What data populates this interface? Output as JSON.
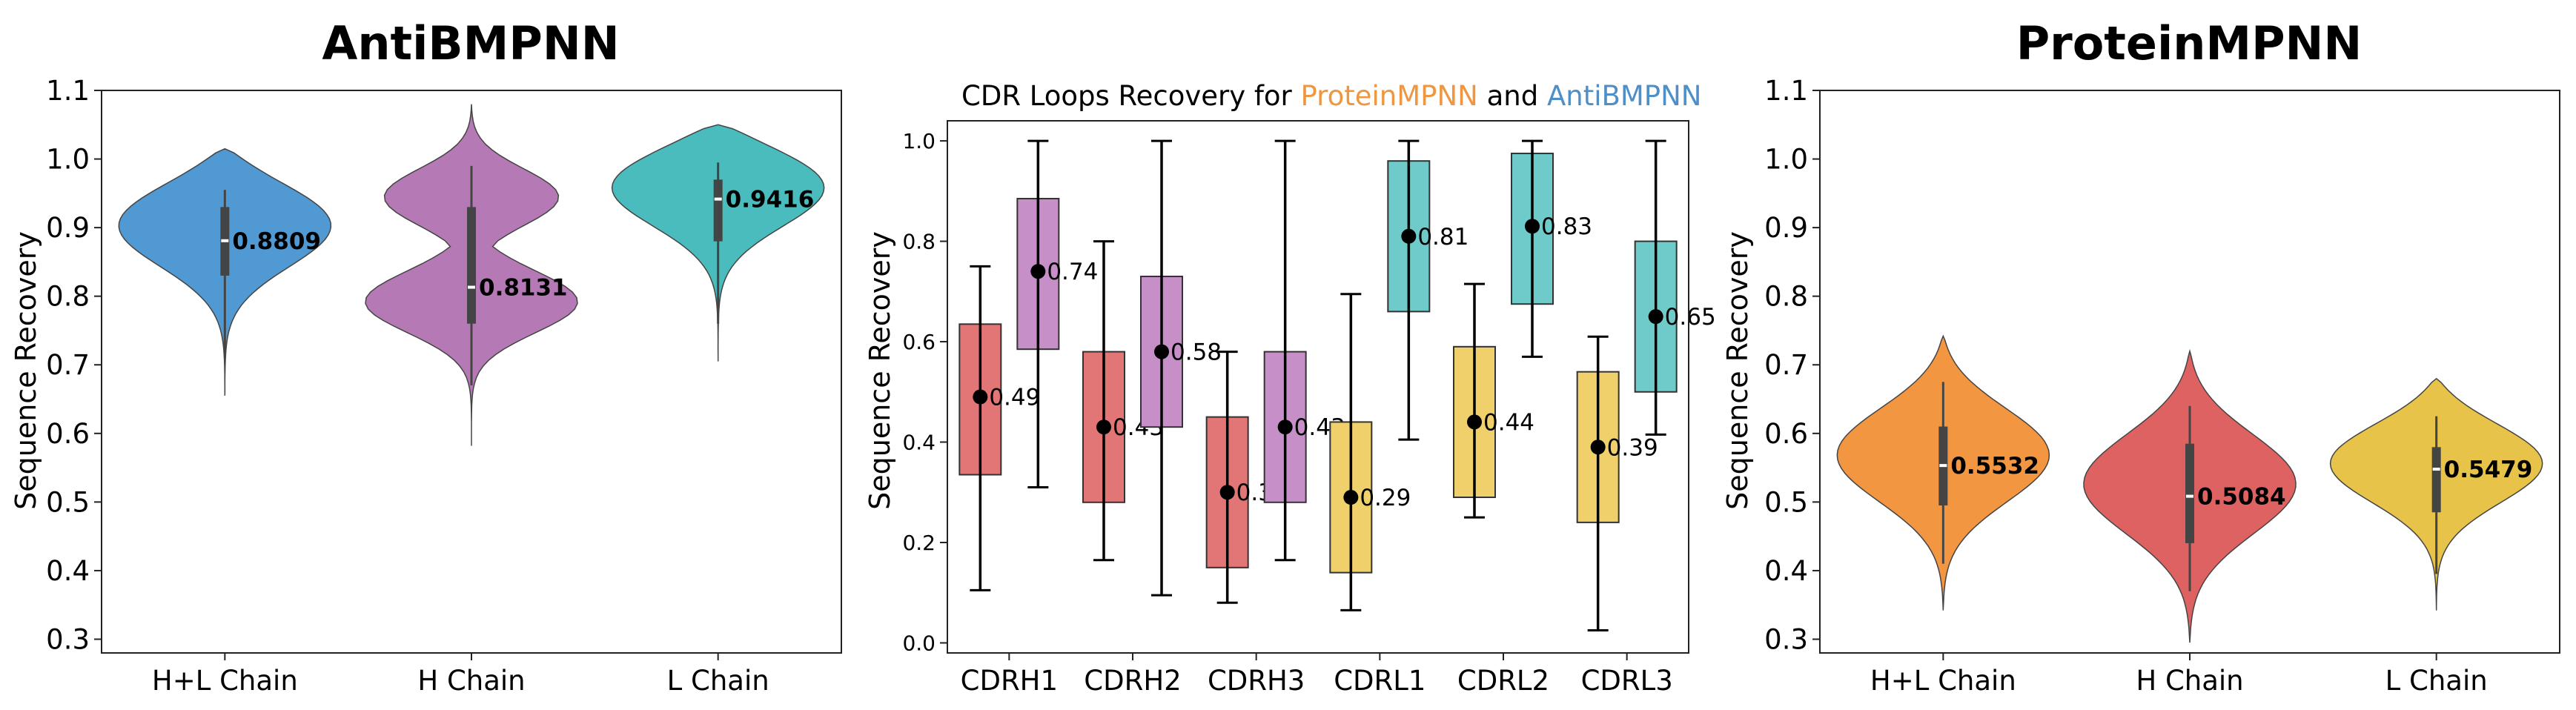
{
  "colors": {
    "hl": "#5199d3",
    "h": "#b57ab6",
    "l": "#4bbcbd",
    "pm_hl": "#f29642",
    "pm_h": "#de6262",
    "pm_l": "#e8c34a",
    "cdr_pm_h": "#e27575",
    "cdr_anti_h": "#c78fc7",
    "cdr_pm_l": "#efd06a",
    "cdr_anti_l": "#6fcaca",
    "title_pm": "#ef9640",
    "title_anti": "#4f8fc7"
  },
  "chart_data": [
    {
      "type": "violin",
      "title": "AntiBMPNN",
      "ylabel": "Sequence Recovery",
      "ylim": [
        0.28,
        1.1
      ],
      "yticks": [
        "0.3",
        "0.4",
        "0.5",
        "0.6",
        "0.7",
        "0.8",
        "0.9",
        "1.0",
        "1.1"
      ],
      "categories": [
        "H+L Chain",
        "H Chain",
        "L Chain"
      ],
      "medians": [
        0.8809,
        0.8131,
        0.9416
      ],
      "median_labels": [
        "0.8809",
        "0.8131",
        "0.9416"
      ],
      "violin_range": [
        [
          0.655,
          1.015
        ],
        [
          0.582,
          1.08
        ],
        [
          0.705,
          1.05
        ]
      ],
      "whiskers": [
        [
          0.71,
          0.955
        ],
        [
          0.67,
          0.99
        ],
        [
          0.76,
          0.995
        ]
      ],
      "iqr": [
        [
          0.83,
          0.93
        ],
        [
          0.76,
          0.93
        ],
        [
          0.88,
          0.97
        ]
      ],
      "grid": false
    },
    {
      "type": "box",
      "title_parts": [
        "CDR Loops Recovery for ",
        "ProteinMPNN",
        " and ",
        "AntiBMPNN"
      ],
      "ylabel": "Sequence Recovery",
      "ylim": [
        -0.02,
        1.04
      ],
      "yticks": [
        "0.0",
        "0.2",
        "0.4",
        "0.6",
        "0.8",
        "1.0"
      ],
      "categories": [
        "CDRH1",
        "CDRH2",
        "CDRH3",
        "CDRL1",
        "CDRL2",
        "CDRL3"
      ],
      "series": [
        {
          "name": "ProteinMPNN",
          "q1": [
            0.335,
            0.28,
            0.15,
            0.14,
            0.29,
            0.24
          ],
          "q3": [
            0.635,
            0.58,
            0.45,
            0.44,
            0.59,
            0.54
          ],
          "whislo": [
            0.105,
            0.165,
            0.08,
            0.065,
            0.25,
            0.025
          ],
          "whishi": [
            0.75,
            0.8,
            0.58,
            0.695,
            0.715,
            0.61
          ],
          "means": [
            0.49,
            0.43,
            0.3,
            0.29,
            0.44,
            0.39
          ],
          "mean_labels": [
            "0.49",
            "0.43",
            "0.30",
            "0.29",
            "0.44",
            "0.39"
          ]
        },
        {
          "name": "AntiBMPNN",
          "q1": [
            0.585,
            0.43,
            0.28,
            0.66,
            0.675,
            0.5
          ],
          "q3": [
            0.885,
            0.73,
            0.58,
            0.96,
            0.975,
            0.8
          ],
          "whislo": [
            0.31,
            0.095,
            0.165,
            0.405,
            0.57,
            0.415
          ],
          "whishi": [
            1.0,
            1.0,
            1.0,
            1.0,
            1.0,
            1.0
          ],
          "means": [
            0.74,
            0.58,
            0.43,
            0.81,
            0.83,
            0.65
          ],
          "mean_labels": [
            "0.74",
            "0.58",
            "0.43",
            "0.81",
            "0.83",
            "0.65"
          ]
        }
      ],
      "grid": false
    },
    {
      "type": "violin",
      "title": "ProteinMPNN",
      "ylabel": "Sequence Recovery",
      "ylim": [
        0.28,
        1.1
      ],
      "yticks": [
        "0.3",
        "0.4",
        "0.5",
        "0.6",
        "0.7",
        "0.8",
        "0.9",
        "1.0",
        "1.1"
      ],
      "categories": [
        "H+L Chain",
        "H Chain",
        "L Chain"
      ],
      "medians": [
        0.5532,
        0.5084,
        0.5479
      ],
      "median_labels": [
        "0.5532",
        "0.5084",
        "0.5479"
      ],
      "violin_range": [
        [
          0.342,
          0.742
        ],
        [
          0.295,
          0.72
        ],
        [
          0.342,
          0.68
        ]
      ],
      "whiskers": [
        [
          0.41,
          0.675
        ],
        [
          0.37,
          0.64
        ],
        [
          0.395,
          0.625
        ]
      ],
      "iqr": [
        [
          0.495,
          0.61
        ],
        [
          0.44,
          0.585
        ],
        [
          0.485,
          0.58
        ]
      ],
      "grid": false
    }
  ]
}
